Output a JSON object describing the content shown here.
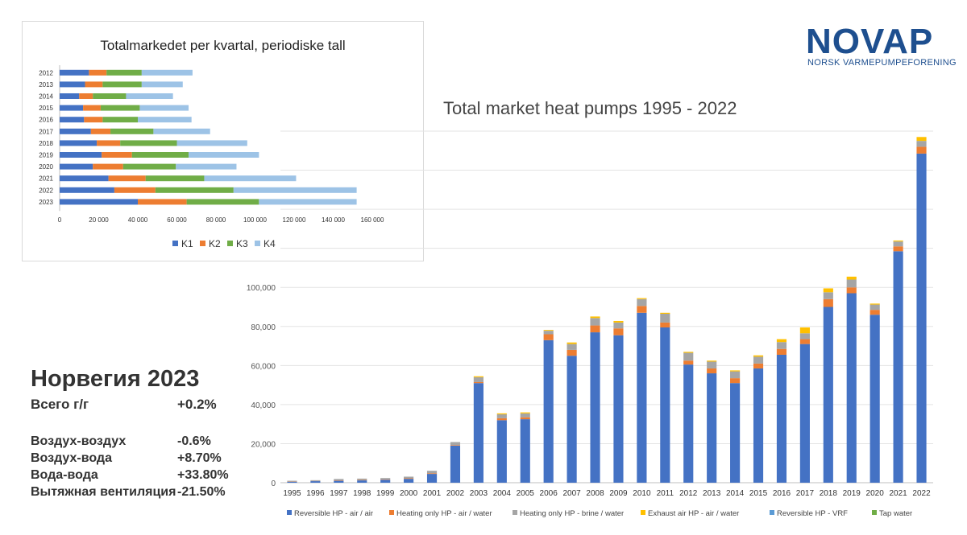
{
  "logo": {
    "word": "NOVAP",
    "subtitle": "NORSK VARMEPUMPEFORENING"
  },
  "inset": {
    "chart_data": {
      "type": "bar",
      "orientation": "horizontal",
      "stacked": true,
      "title": "Totalmarkedet per kvartal, periodiske tall",
      "categories": [
        "2012",
        "2013",
        "2014",
        "2015",
        "2016",
        "2017",
        "2018",
        "2019",
        "2020",
        "2021",
        "2022",
        "2023"
      ],
      "series": [
        {
          "name": "K1",
          "color": "#4472c4",
          "values": [
            15000,
            13000,
            10000,
            12000,
            12500,
            16000,
            19000,
            21500,
            17000,
            25000,
            28000,
            40000
          ]
        },
        {
          "name": "K2",
          "color": "#ed7d31",
          "values": [
            9000,
            9000,
            7000,
            9000,
            9500,
            10000,
            12000,
            15500,
            15500,
            19000,
            21000,
            25000
          ]
        },
        {
          "name": "K3",
          "color": "#70ad47",
          "values": [
            18000,
            20000,
            17000,
            20000,
            18000,
            22000,
            29000,
            29000,
            27000,
            30000,
            40000,
            37000
          ]
        },
        {
          "name": "K4",
          "color": "#9dc3e6",
          "values": [
            26000,
            21000,
            24000,
            25000,
            27500,
            29000,
            36000,
            36000,
            31000,
            47000,
            63000,
            50000
          ]
        }
      ],
      "xlim": [
        0,
        160000
      ],
      "xticks": [
        "0",
        "20 000",
        "40 000",
        "60 000",
        "80 000",
        "100 000",
        "120 000",
        "140 000",
        "160 000"
      ],
      "legend": "bottom"
    }
  },
  "main": {
    "chart_data": {
      "type": "bar",
      "stacked": true,
      "title": "Total market heat pumps 1995 - 2022",
      "categories": [
        "1995",
        "1996",
        "1997",
        "1998",
        "1999",
        "2000",
        "2001",
        "2002",
        "2003",
        "2004",
        "2005",
        "2006",
        "2007",
        "2008",
        "2009",
        "2010",
        "2011",
        "2012",
        "2013",
        "2014",
        "2015",
        "2016",
        "2017",
        "2018",
        "2019",
        "2020",
        "2021",
        "2022"
      ],
      "series": [
        {
          "name": "Reversible HP - air / air",
          "color": "#4472c4",
          "values": [
            500,
            800,
            1000,
            1200,
            1500,
            2000,
            4500,
            19000,
            51000,
            32000,
            32500,
            73000,
            65000,
            77000,
            75500,
            87000,
            79500,
            60500,
            56000,
            51000,
            58500,
            65500,
            71000,
            90000,
            97000,
            86000,
            118500,
            168500
          ]
        },
        {
          "name": "Heating only HP - air / water",
          "color": "#ed7d31",
          "values": [
            100,
            100,
            200,
            200,
            200,
            300,
            300,
            300,
            500,
            1000,
            1000,
            3000,
            3000,
            3500,
            3500,
            3500,
            2500,
            2000,
            2500,
            2500,
            2500,
            3000,
            2500,
            4000,
            3000,
            2500,
            2500,
            3500
          ]
        },
        {
          "name": "Heating only HP - brine / water",
          "color": "#a5a5a5",
          "values": [
            400,
            400,
            700,
            700,
            700,
            800,
            1300,
            1500,
            2500,
            2000,
            2000,
            1800,
            3000,
            3800,
            3000,
            3500,
            4500,
            4000,
            3500,
            3500,
            3500,
            3500,
            3000,
            3500,
            4000,
            2700,
            2500,
            3000
          ]
        },
        {
          "name": "Exhaust air HP - air / water",
          "color": "#ffc000",
          "values": [
            0,
            0,
            0,
            0,
            0,
            0,
            0,
            0,
            500,
            500,
            500,
            400,
            800,
            800,
            800,
            500,
            500,
            500,
            500,
            500,
            700,
            1500,
            3000,
            2000,
            1500,
            500,
            500,
            2000
          ]
        },
        {
          "name": "Reversible HP - VRF",
          "color": "#5b9bd5",
          "values": [
            0,
            0,
            0,
            0,
            0,
            0,
            0,
            0,
            0,
            0,
            0,
            0,
            0,
            0,
            0,
            0,
            0,
            0,
            0,
            0,
            0,
            0,
            0,
            0,
            0,
            0,
            0,
            0
          ]
        },
        {
          "name": "Tap water",
          "color": "#70ad47",
          "values": [
            0,
            0,
            0,
            0,
            0,
            0,
            0,
            0,
            0,
            0,
            0,
            0,
            0,
            0,
            0,
            0,
            0,
            0,
            0,
            0,
            0,
            0,
            0,
            0,
            0,
            0,
            0,
            0
          ]
        }
      ],
      "ylim": [
        0,
        180000
      ],
      "yticks": [
        "0",
        "20,000",
        "40,000",
        "60,000",
        "80,000",
        "100,000"
      ],
      "grid": true,
      "legend": "bottom"
    }
  },
  "stats": {
    "title": "Норвегия 2023",
    "rows": [
      {
        "label": "Всего г/г",
        "value": "+0.2%"
      },
      {
        "label": "Воздух-воздух",
        "value": "-0.6%"
      },
      {
        "label": "Воздух-вода",
        "value": "+8.70%"
      },
      {
        "label": "Вода-вода",
        "value": "+33.80%"
      },
      {
        "label": "Вытяжная вентиляция",
        "value": "-21.50%"
      }
    ]
  }
}
